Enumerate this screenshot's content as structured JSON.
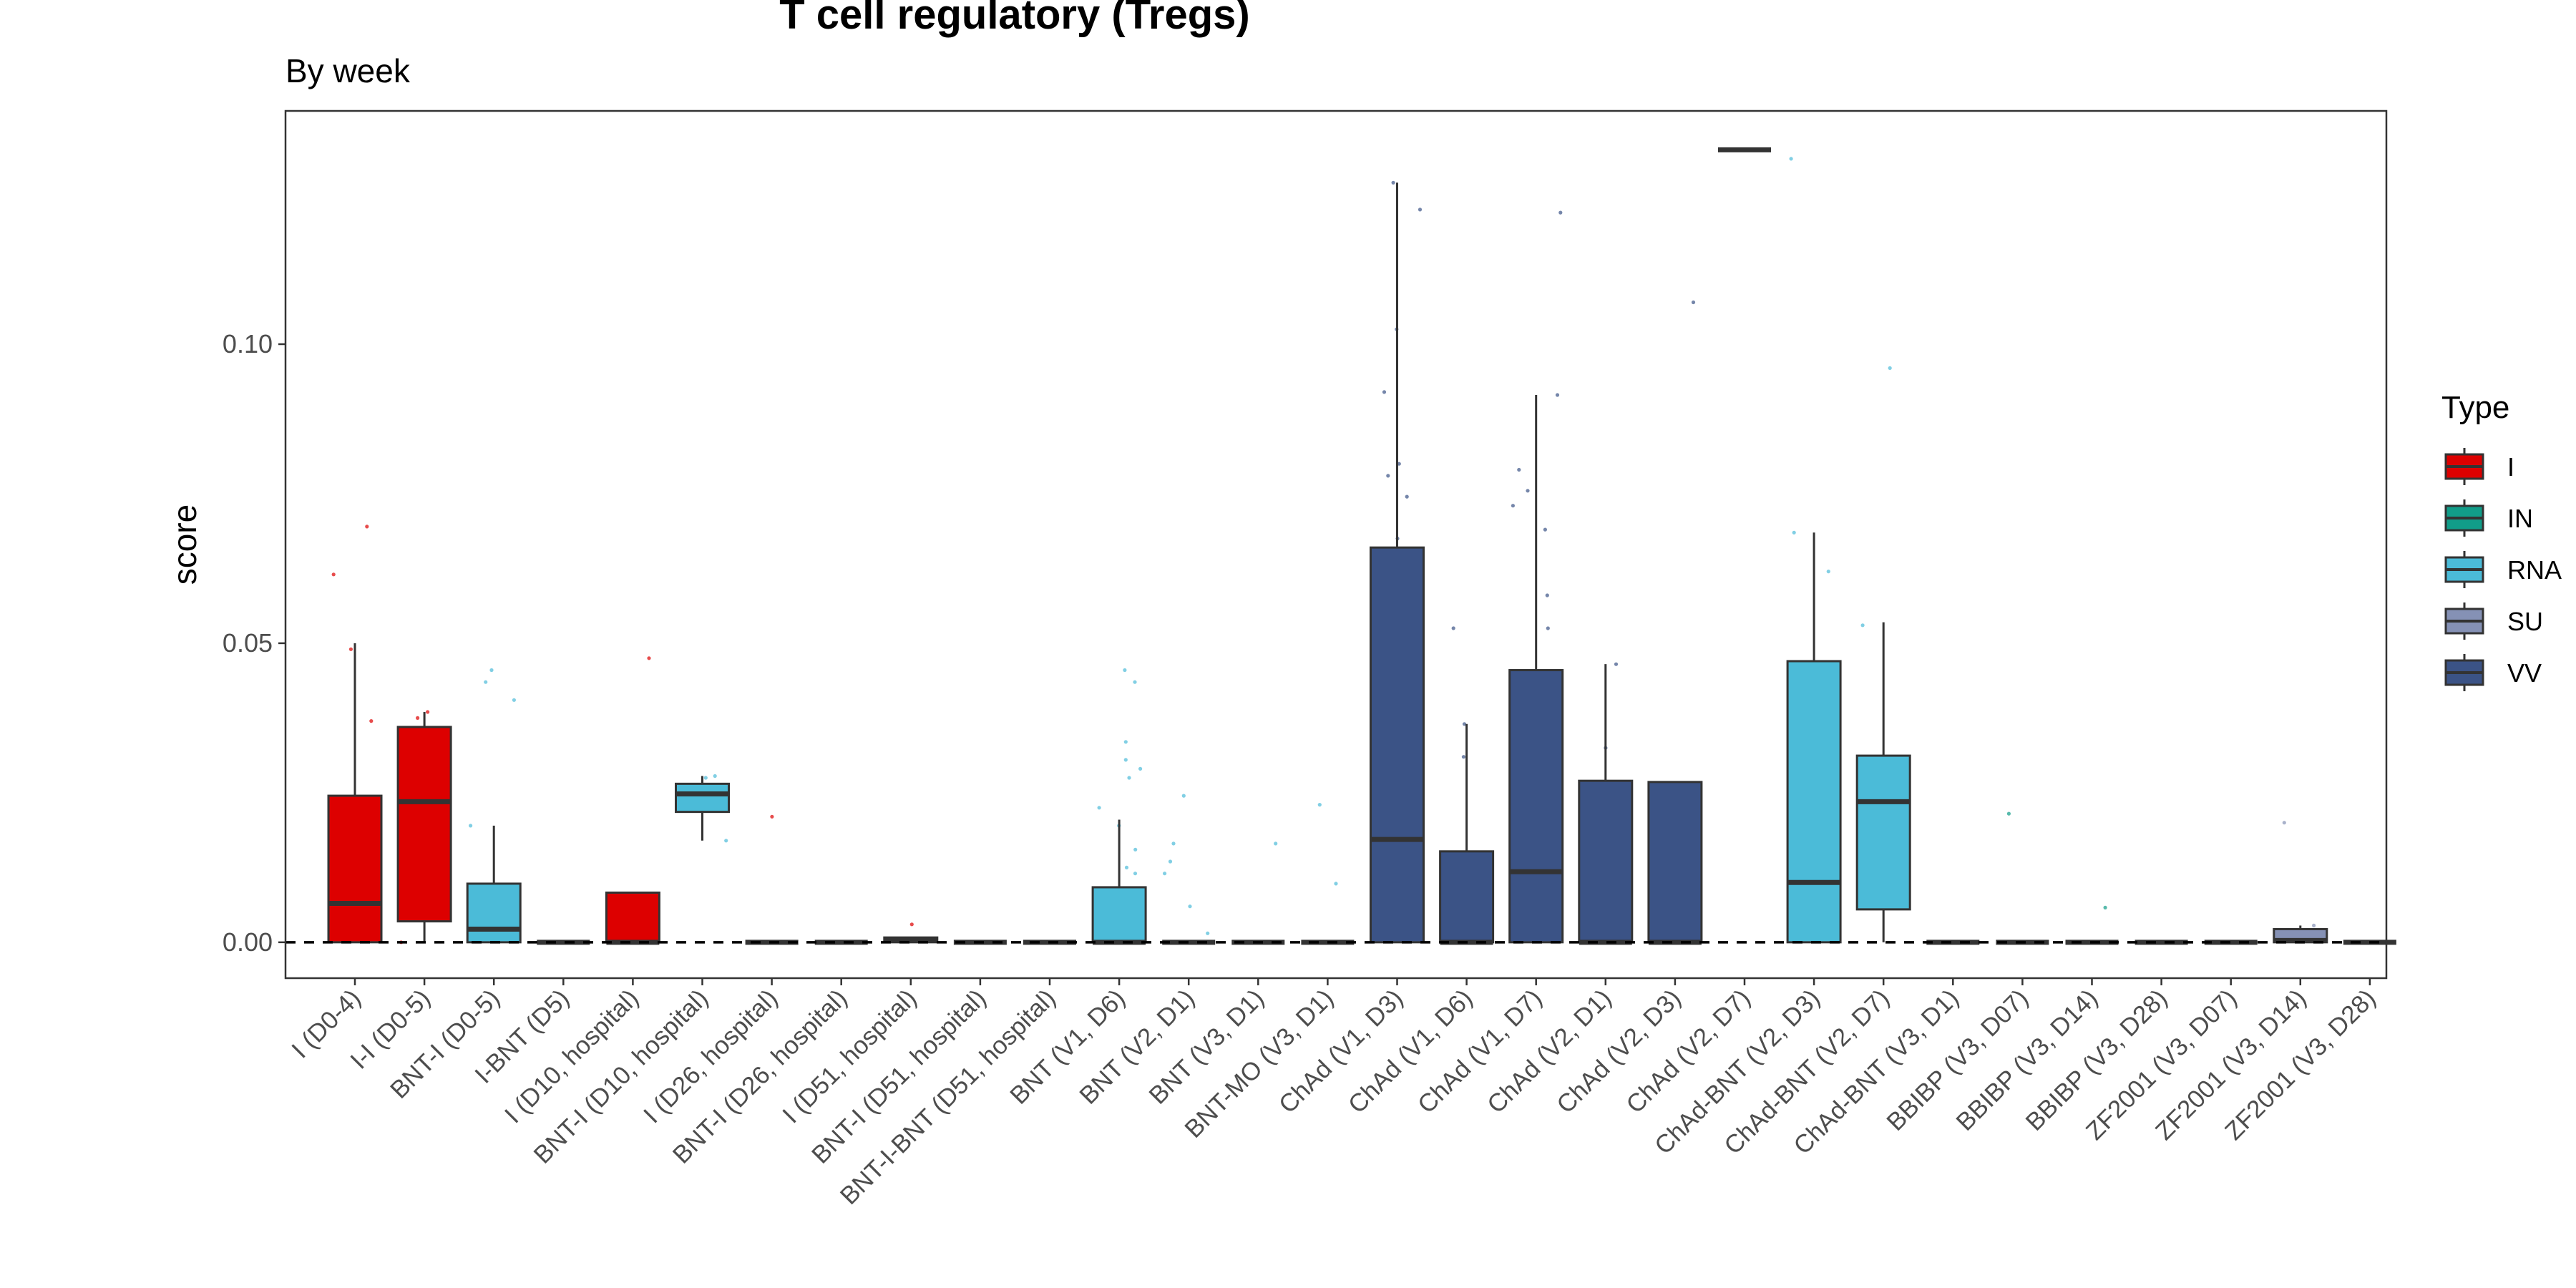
{
  "chart_data": {
    "type": "box",
    "title": "T cell regulatory (Tregs)",
    "subtitle": "By week",
    "xlabel": "",
    "ylabel": "score",
    "ylim": [
      -0.006,
      0.139
    ],
    "yticks": [
      0.0,
      0.05,
      0.1
    ],
    "ytick_labels": [
      "0.00",
      "0.05",
      "0.10"
    ],
    "reference_line": {
      "y": 0,
      "style": "dashed"
    },
    "grid": false,
    "legend": {
      "title": "Type",
      "position": "right",
      "entries": [
        {
          "label": "I",
          "color": "#DD0000"
        },
        {
          "label": "IN",
          "color": "#119D89"
        },
        {
          "label": "RNA",
          "color": "#4BBBD8"
        },
        {
          "label": "SU",
          "color": "#8591B5"
        },
        {
          "label": "VV",
          "color": "#3B5386"
        }
      ]
    },
    "groups": [
      {
        "label": "I (D0-4)",
        "type": "I",
        "q1": 0.0,
        "median": 0.0065,
        "q3": 0.0245,
        "whisker_low": 0.0,
        "whisker_high": 0.05,
        "points": [
          0.0695,
          0.0615,
          0.049,
          0.037,
          0.018,
          0.008,
          0.003,
          0.0005
        ]
      },
      {
        "label": "I-I (D0-5)",
        "type": "I",
        "q1": 0.0035,
        "median": 0.0235,
        "q3": 0.036,
        "whisker_low": 0.0,
        "whisker_high": 0.0385,
        "points": [
          0.0385,
          0.0375,
          0.033,
          0.025,
          0.008,
          0.0
        ]
      },
      {
        "label": "BNT-I (D0-5)",
        "type": "RNA",
        "q1": 0.0,
        "median": 0.0022,
        "q3": 0.0098,
        "whisker_low": 0.0,
        "whisker_high": 0.0195,
        "points": [
          0.0455,
          0.0435,
          0.0405,
          0.0195,
          0.006,
          0.0015
        ]
      },
      {
        "label": "I-BNT (D5)",
        "type": "I",
        "q1": 0.0,
        "median": 0.0,
        "q3": 0.0,
        "whisker_low": 0.0,
        "whisker_high": 0.0,
        "points": [
          0.0
        ]
      },
      {
        "label": "I (D10, hospital)",
        "type": "I",
        "q1": 0.0,
        "median": 0.0,
        "q3": 0.0083,
        "whisker_low": 0.0,
        "whisker_high": 0.0083,
        "points": [
          0.0475,
          0.0045
        ]
      },
      {
        "label": "BNT-I (D10, hospital)",
        "type": "RNA",
        "q1": 0.0218,
        "median": 0.0248,
        "q3": 0.0265,
        "whisker_low": 0.017,
        "whisker_high": 0.0278,
        "points": [
          0.0278,
          0.0275,
          0.024,
          0.017
        ]
      },
      {
        "label": "I (D26, hospital)",
        "type": "I",
        "q1": 0.0,
        "median": 0.0,
        "q3": 0.0,
        "whisker_low": 0.0,
        "whisker_high": 0.0,
        "points": [
          0.021
        ]
      },
      {
        "label": "BNT-I (D26, hospital)",
        "type": "RNA",
        "q1": 0.0,
        "median": 0.0,
        "q3": 0.0,
        "whisker_low": 0.0,
        "whisker_high": 0.0,
        "points": [
          0.0
        ]
      },
      {
        "label": "I (D51, hospital)",
        "type": "I",
        "q1": 0.0,
        "median": 0.0003,
        "q3": 0.0008,
        "whisker_low": 0.0,
        "whisker_high": 0.0008,
        "points": [
          0.003,
          0.0005
        ]
      },
      {
        "label": "BNT-I (D51, hospital)",
        "type": "RNA",
        "q1": 0.0,
        "median": 0.0,
        "q3": 0.0,
        "whisker_low": 0.0,
        "whisker_high": 0.0,
        "points": [
          0.0
        ]
      },
      {
        "label": "BNT-I-BNT (D51, hospital)",
        "type": "RNA",
        "q1": 0.0,
        "median": 0.0,
        "q3": 0.0,
        "whisker_low": 0.0,
        "whisker_high": 0.0,
        "points": [
          0.0
        ]
      },
      {
        "label": "BNT (V1, D6)",
        "type": "RNA",
        "q1": 0.0,
        "median": 0.0,
        "q3": 0.0092,
        "whisker_low": 0.0,
        "whisker_high": 0.0205,
        "points": [
          0.0455,
          0.0435,
          0.0335,
          0.0305,
          0.029,
          0.0275,
          0.0225,
          0.0195,
          0.0155,
          0.0125,
          0.0115,
          0.006,
          0.002
        ]
      },
      {
        "label": "BNT (V2, D1)",
        "type": "RNA",
        "q1": 0.0,
        "median": 0.0,
        "q3": 0.0,
        "whisker_low": 0.0,
        "whisker_high": 0.0,
        "points": [
          0.0245,
          0.0165,
          0.0135,
          0.0115,
          0.006,
          0.0015
        ]
      },
      {
        "label": "BNT (V3, D1)",
        "type": "RNA",
        "q1": 0.0,
        "median": 0.0,
        "q3": 0.0,
        "whisker_low": 0.0,
        "whisker_high": 0.0,
        "points": [
          0.0165
        ]
      },
      {
        "label": "BNT-MO (V3, D1)",
        "type": "RNA",
        "q1": 0.0,
        "median": 0.0,
        "q3": 0.0,
        "whisker_low": 0.0,
        "whisker_high": 0.0,
        "points": [
          0.023,
          0.0098
        ]
      },
      {
        "label": "ChAd (V1, D3)",
        "type": "VV",
        "q1": 0.0,
        "median": 0.0172,
        "q3": 0.066,
        "whisker_low": 0.0,
        "whisker_high": 0.127,
        "points": [
          0.127,
          0.1225,
          0.1025,
          0.092,
          0.08,
          0.078,
          0.0745,
          0.0675,
          0.0525
        ]
      },
      {
        "label": "ChAd (V1, D6)",
        "type": "VV",
        "q1": 0.0,
        "median": 0.0,
        "q3": 0.0152,
        "whisker_low": 0.0,
        "whisker_high": 0.0365,
        "points": [
          0.0525,
          0.0365,
          0.031
        ]
      },
      {
        "label": "ChAd (V1, D7)",
        "type": "VV",
        "q1": 0.0,
        "median": 0.0118,
        "q3": 0.0455,
        "whisker_low": 0.0,
        "whisker_high": 0.0915,
        "points": [
          0.122,
          0.0915,
          0.079,
          0.0755,
          0.073,
          0.069,
          0.058,
          0.0525
        ]
      },
      {
        "label": "ChAd (V2, D1)",
        "type": "VV",
        "q1": 0.0,
        "median": 0.0,
        "q3": 0.027,
        "whisker_low": 0.0,
        "whisker_high": 0.0465,
        "points": [
          0.0465,
          0.0325
        ]
      },
      {
        "label": "ChAd (V2, D3)",
        "type": "VV",
        "q1": 0.0,
        "median": 0.0,
        "q3": 0.0268,
        "whisker_low": 0.0,
        "whisker_high": 0.0268,
        "points": [
          0.107
        ]
      },
      {
        "label": "ChAd (V2, D7)",
        "type": "VV",
        "q1": 0.1325,
        "median": 0.1325,
        "q3": 0.1325,
        "whisker_low": 0.1325,
        "whisker_high": 0.1325,
        "points": [
          0.1325
        ]
      },
      {
        "label": "ChAd-BNT (V2, D3)",
        "type": "RNA",
        "q1": 0.0,
        "median": 0.01,
        "q3": 0.047,
        "whisker_low": 0.0,
        "whisker_high": 0.0685,
        "points": [
          0.131,
          0.0685,
          0.062
        ]
      },
      {
        "label": "ChAd-BNT (V2, D7)",
        "type": "RNA",
        "q1": 0.0055,
        "median": 0.0235,
        "q3": 0.0312,
        "whisker_low": 0.0,
        "whisker_high": 0.0535,
        "points": [
          0.096,
          0.053
        ]
      },
      {
        "label": "ChAd-BNT (V3, D1)",
        "type": "VV",
        "q1": 0.0,
        "median": 0.0,
        "q3": 0.0,
        "whisker_low": 0.0,
        "whisker_high": 0.0,
        "points": [
          0.0
        ]
      },
      {
        "label": "BBIBP (V3, D07)",
        "type": "IN",
        "q1": 0.0,
        "median": 0.0,
        "q3": 0.0,
        "whisker_low": 0.0,
        "whisker_high": 0.0,
        "points": [
          0.0215
        ]
      },
      {
        "label": "BBIBP (V3, D14)",
        "type": "IN",
        "q1": 0.0,
        "median": 0.0,
        "q3": 0.0,
        "whisker_low": 0.0,
        "whisker_high": 0.0,
        "points": [
          0.0058
        ]
      },
      {
        "label": "BBIBP (V3, D28)",
        "type": "IN",
        "q1": 0.0,
        "median": 0.0,
        "q3": 0.0,
        "whisker_low": 0.0,
        "whisker_high": 0.0,
        "points": [
          0.0
        ]
      },
      {
        "label": "ZF2001 (V3, D07)",
        "type": "SU",
        "q1": 0.0,
        "median": 0.0,
        "q3": 0.0,
        "whisker_low": 0.0,
        "whisker_high": 0.0,
        "points": [
          0.0
        ]
      },
      {
        "label": "ZF2001 (V3, D14)",
        "type": "SU",
        "q1": 0.0,
        "median": 0.0003,
        "q3": 0.0022,
        "whisker_low": 0.0,
        "whisker_high": 0.0028,
        "points": [
          0.02,
          0.0028
        ]
      },
      {
        "label": "ZF2001 (V3, D28)",
        "type": "SU",
        "q1": 0.0,
        "median": 0.0,
        "q3": 0.0,
        "whisker_low": 0.0,
        "whisker_high": 0.0,
        "points": [
          0.0
        ]
      }
    ]
  }
}
